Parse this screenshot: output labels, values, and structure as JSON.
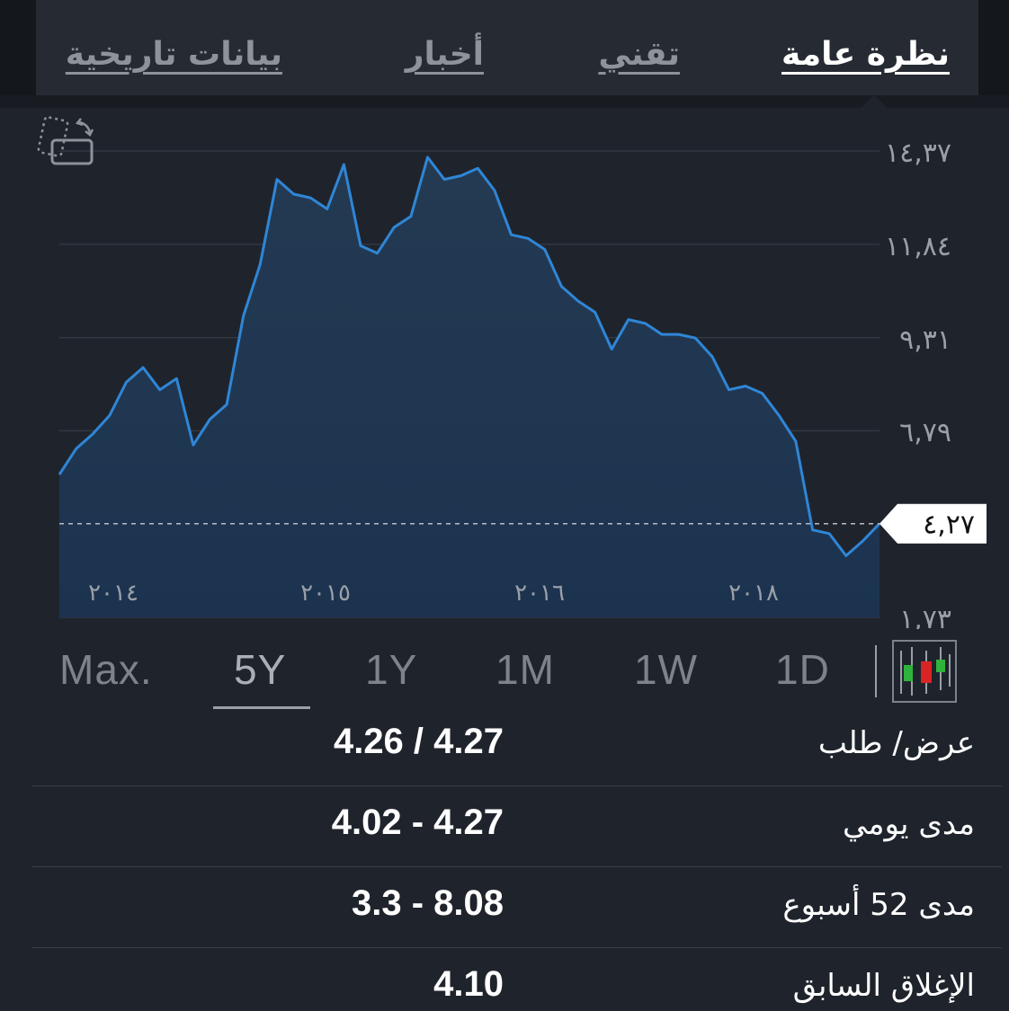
{
  "tabs": [
    {
      "label": "نظرة عامة",
      "active": true
    },
    {
      "label": "تقني",
      "active": false
    },
    {
      "label": "أخبار",
      "active": false
    },
    {
      "label": "بيانات تاريخية",
      "active": false
    }
  ],
  "chart_data": {
    "type": "area",
    "y_ticks": [
      "١٤,٣٧",
      "١١,٨٤",
      "٩,٣١",
      "٦,٧٩",
      "١,٧٣"
    ],
    "x_ticks": [
      "٢٠١٤",
      "٢٠١٥",
      "٢٠١٦",
      "٢٠١٨"
    ],
    "ylim": [
      1.73,
      14.37
    ],
    "current_value_label": "٤,٢٧",
    "current_value": 4.27,
    "series": [
      {
        "values": [
          5.6,
          6.3,
          6.7,
          7.2,
          8.1,
          8.5,
          7.9,
          8.2,
          6.4,
          7.1,
          7.5,
          9.9,
          11.3,
          13.6,
          13.2,
          13.1,
          12.8,
          14.0,
          11.8,
          11.6,
          12.3,
          12.6,
          14.2,
          13.6,
          13.7,
          13.9,
          13.3,
          12.1,
          12.0,
          11.7,
          10.7,
          10.3,
          10.0,
          9.0,
          9.8,
          9.7,
          9.4,
          9.4,
          9.3,
          8.8,
          7.9,
          8.0,
          7.8,
          7.2,
          6.5,
          4.1,
          4.0,
          3.4,
          3.8,
          4.27
        ]
      }
    ],
    "grid": true
  },
  "ranges": [
    "Max.",
    "5Y",
    "1Y",
    "1M",
    "1W",
    "1D"
  ],
  "active_range": "5Y",
  "stats": [
    {
      "label": "عرض/ طلب",
      "value": "4.26 / 4.27"
    },
    {
      "label": "مدى يومي",
      "value": "4.02 - 4.27"
    },
    {
      "label": "مدى 52 أسبوع",
      "value": "3.3 - 8.08"
    },
    {
      "label": "الإغلاق السابق",
      "value": "4.10"
    }
  ],
  "colors": {
    "line": "#2f86d6",
    "fill_top": "#243a52",
    "fill_bottom": "#1c3350",
    "candle_green": "#2fb33c",
    "candle_red": "#d82424"
  }
}
